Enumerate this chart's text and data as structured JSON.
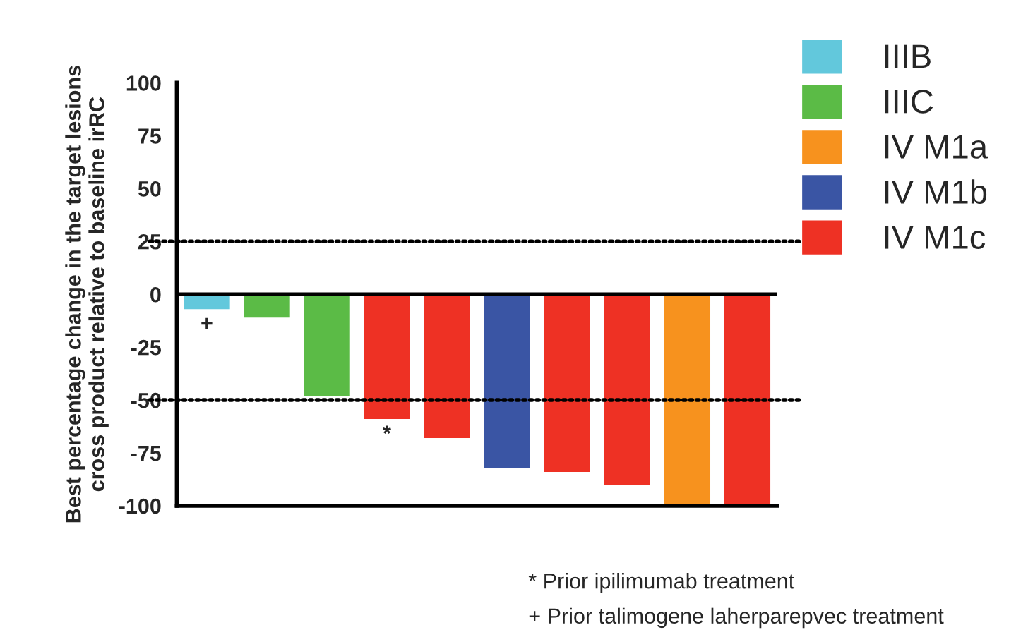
{
  "chart_data": {
    "type": "bar",
    "ylabel": "Best percentage change in the target lesions\ncross product relative to baseline irRC",
    "categories": [
      null,
      null,
      null,
      null,
      null,
      null,
      null,
      null,
      null,
      null
    ],
    "series": [
      {
        "name": "IIIB",
        "color": "#62c8dc",
        "values": [
          -7,
          null,
          null,
          null,
          null,
          null,
          null,
          null,
          null,
          null
        ],
        "value_labels": [
          "+",
          null,
          null,
          null,
          null,
          null,
          null,
          null,
          null,
          null
        ]
      },
      {
        "name": "IIIC",
        "color": "#5bbb46",
        "values": [
          null,
          -11,
          -48,
          null,
          null,
          null,
          null,
          null,
          null,
          null
        ]
      },
      {
        "name": "IV M1a",
        "color": "#f7921e",
        "values": [
          null,
          null,
          null,
          null,
          null,
          null,
          null,
          null,
          -100,
          null
        ]
      },
      {
        "name": "IV M1b",
        "color": "#3a55a4",
        "values": [
          null,
          null,
          null,
          null,
          null,
          -82,
          null,
          null,
          null,
          null
        ]
      },
      {
        "name": "IV M1c",
        "color": "#ee3124",
        "values": [
          null,
          null,
          null,
          -59,
          -68,
          null,
          -84,
          -90,
          null,
          -100
        ],
        "value_labels": [
          null,
          null,
          null,
          "*",
          null,
          null,
          null,
          null,
          null,
          null
        ]
      }
    ],
    "ylim": [
      -100,
      100
    ],
    "yticks": [
      -100,
      -75,
      -50,
      -25,
      0,
      25,
      50,
      75,
      100
    ],
    "ref_lines": [
      {
        "axis": "y",
        "value": 0,
        "color": "#000000",
        "line_style": "solid"
      },
      {
        "axis": "y",
        "value": 25,
        "color": "#000000",
        "line_style": "dotted"
      },
      {
        "axis": "y",
        "value": -50,
        "color": "#000000",
        "line_style": "dotted"
      }
    ],
    "annotations": [
      "* Prior ipilimumab treatment",
      "+ Prior talimogene laherparepvec treatment"
    ],
    "grid": false,
    "legend": "top right",
    "tick_labels": "y"
  }
}
